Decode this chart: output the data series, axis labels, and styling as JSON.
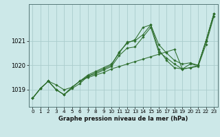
{
  "title": "Graphe pression niveau de la mer (hPa)",
  "bg_color": "#cce8e8",
  "grid_color": "#aacccc",
  "line_color": "#2d6e2d",
  "xlim": [
    -0.5,
    23.5
  ],
  "ylim": [
    1018.3,
    1022.5
  ],
  "yticks": [
    1019,
    1020,
    1021
  ],
  "ytick_labels": [
    "1019",
    "1020",
    "1021"
  ],
  "xticks": [
    0,
    1,
    2,
    3,
    4,
    5,
    6,
    7,
    8,
    9,
    10,
    11,
    12,
    13,
    14,
    15,
    16,
    17,
    18,
    19,
    20,
    21,
    22,
    23
  ],
  "series": [
    [
      1018.65,
      1019.05,
      1019.35,
      1019.2,
      1019.0,
      1019.1,
      1019.35,
      1019.5,
      1019.6,
      1019.7,
      1019.85,
      1019.95,
      1020.05,
      1020.15,
      1020.25,
      1020.35,
      1020.45,
      1020.55,
      1020.65,
      1019.85,
      1019.9,
      1019.95,
      1020.85,
      1022.0
    ],
    [
      1018.65,
      1019.05,
      1019.35,
      1019.0,
      1018.8,
      1019.05,
      1019.25,
      1019.55,
      1019.7,
      1019.85,
      1020.0,
      1020.55,
      1020.9,
      1021.05,
      1021.55,
      1021.65,
      1020.65,
      1020.2,
      1019.9,
      1019.85,
      1020.05,
      1020.0,
      1021.0,
      1022.1
    ],
    [
      1018.65,
      1019.05,
      1019.35,
      1019.0,
      1018.8,
      1019.1,
      1019.35,
      1019.6,
      1019.75,
      1019.9,
      1020.05,
      1020.5,
      1020.95,
      1021.0,
      1021.25,
      1021.65,
      1020.85,
      1020.5,
      1020.2,
      1020.05,
      1020.1,
      1020.0,
      1021.0,
      1022.1
    ],
    [
      1018.65,
      1019.05,
      1019.35,
      1019.0,
      1018.8,
      1019.1,
      1019.35,
      1019.55,
      1019.65,
      1019.8,
      1019.95,
      1020.4,
      1020.7,
      1020.75,
      1021.15,
      1021.55,
      1020.55,
      1020.3,
      1020.05,
      1019.85,
      1019.9,
      1020.0,
      1021.0,
      1022.1
    ]
  ]
}
